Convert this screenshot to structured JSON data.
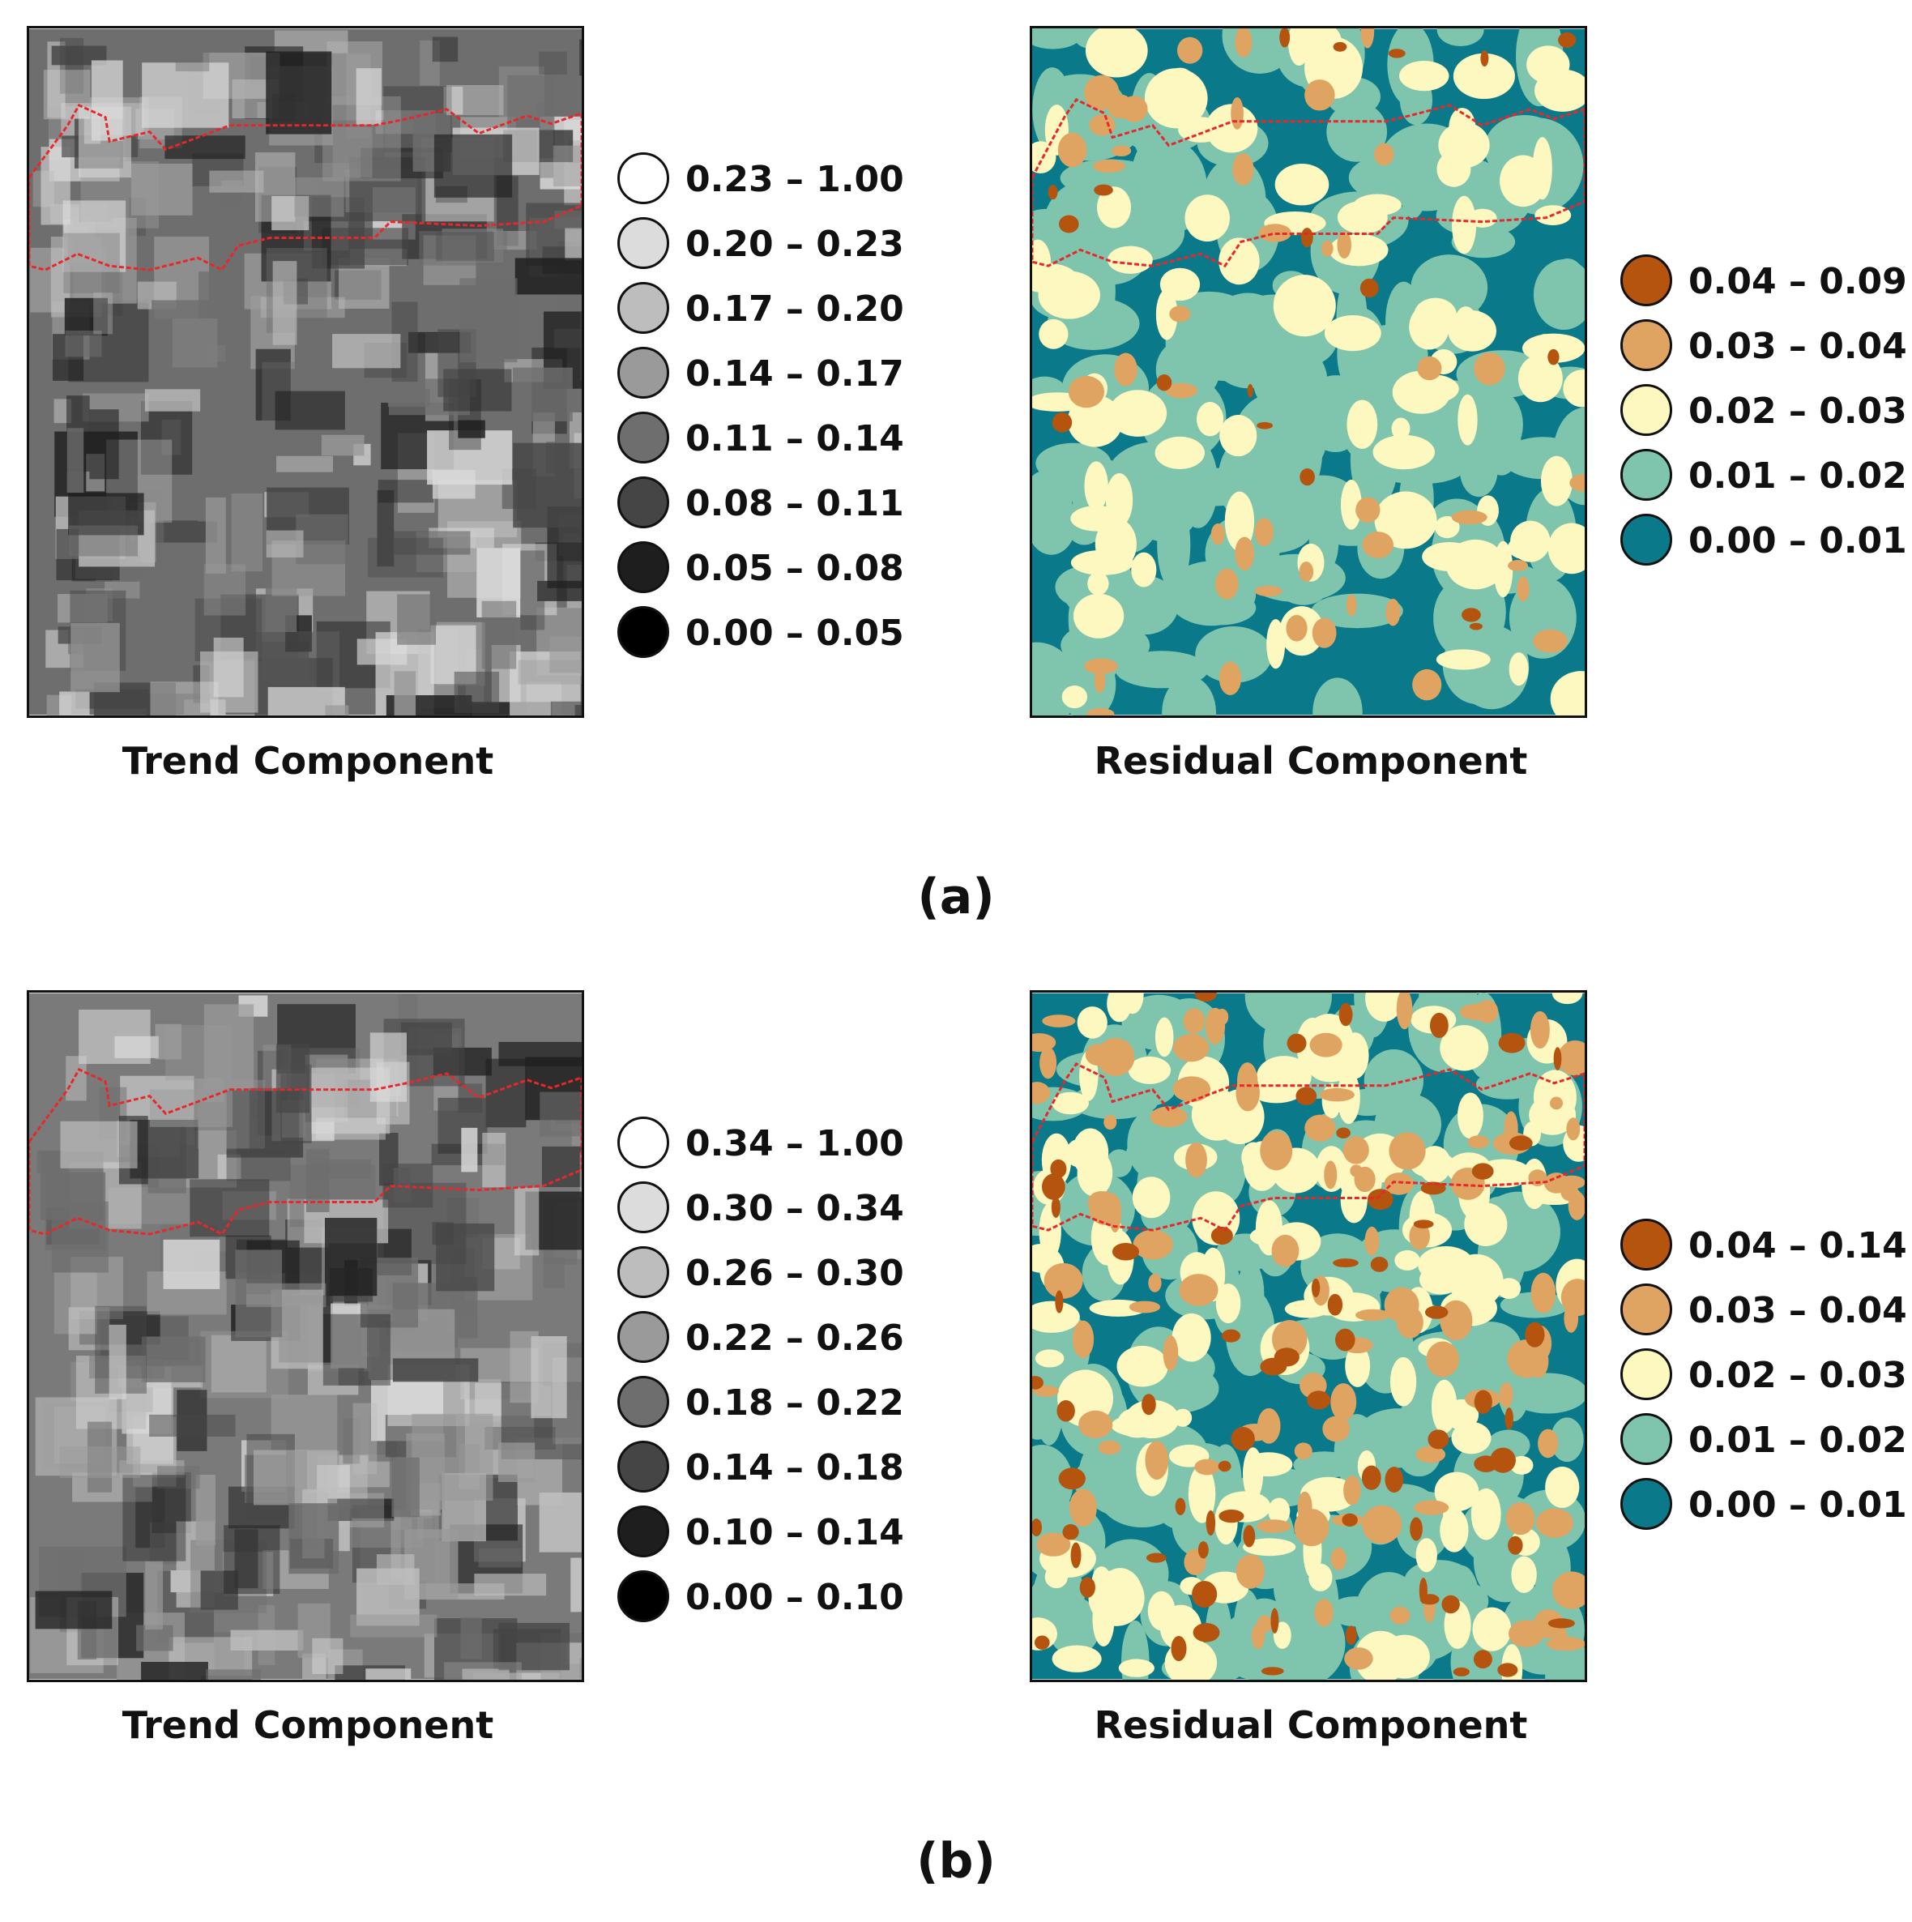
{
  "panels": [
    {
      "id": "a",
      "label": "(a)",
      "trend": {
        "title": "Trend Component",
        "legend": [
          {
            "label": "0.23 – 1.00",
            "color": "#ffffff"
          },
          {
            "label": "0.20 – 0.23",
            "color": "#dcdcdc"
          },
          {
            "label": "0.17 – 0.20",
            "color": "#bdbdbd"
          },
          {
            "label": "0.14 – 0.17",
            "color": "#9a9a9a"
          },
          {
            "label": "0.11 – 0.14",
            "color": "#6e6e6e"
          },
          {
            "label": "0.08 – 0.11",
            "color": "#454545"
          },
          {
            "label": "0.05 – 0.08",
            "color": "#1e1e1e"
          },
          {
            "label": "0.00 – 0.05",
            "color": "#000000"
          }
        ]
      },
      "residual": {
        "title": "Residual Component",
        "legend": [
          {
            "label": "0.04 – 0.09",
            "color": "#b5540f"
          },
          {
            "label": "0.03 – 0.04",
            "color": "#e0a462"
          },
          {
            "label": "0.02 – 0.03",
            "color": "#fdf7c0"
          },
          {
            "label": "0.01 – 0.02",
            "color": "#7fc4ad"
          },
          {
            "label": "0.00 – 0.01",
            "color": "#0a7a8a"
          }
        ]
      }
    },
    {
      "id": "b",
      "label": "(b)",
      "trend": {
        "title": "Trend Component",
        "legend": [
          {
            "label": "0.34 – 1.00",
            "color": "#ffffff"
          },
          {
            "label": "0.30 – 0.34",
            "color": "#dcdcdc"
          },
          {
            "label": "0.26 – 0.30",
            "color": "#bdbdbd"
          },
          {
            "label": "0.22 – 0.26",
            "color": "#9a9a9a"
          },
          {
            "label": "0.18 – 0.22",
            "color": "#6e6e6e"
          },
          {
            "label": "0.14 – 0.18",
            "color": "#454545"
          },
          {
            "label": "0.10 – 0.14",
            "color": "#1e1e1e"
          },
          {
            "label": "0.00 – 0.10",
            "color": "#000000"
          }
        ]
      },
      "residual": {
        "title": "Residual Component",
        "legend": [
          {
            "label": "0.04 – 0.14",
            "color": "#b5540f"
          },
          {
            "label": "0.03 – 0.04",
            "color": "#e0a462"
          },
          {
            "label": "0.02 – 0.03",
            "color": "#fdf7c0"
          },
          {
            "label": "0.01 – 0.02",
            "color": "#7fc4ad"
          },
          {
            "label": "0.00 – 0.01",
            "color": "#0a7a8a"
          }
        ]
      }
    }
  ],
  "boundary_color": "#e8272a"
}
